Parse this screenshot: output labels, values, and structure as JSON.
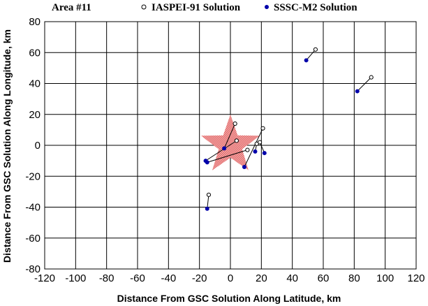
{
  "chart_data": {
    "type": "scatter",
    "area_label": "Area #11",
    "xlabel": "Distance From GSC Solution Along Latitude, km",
    "ylabel": "Distance From GSC Solution Along Longitude, km",
    "xlim": [
      -120,
      120
    ],
    "ylim": [
      -80,
      80
    ],
    "xticks": [
      -120,
      -100,
      -80,
      -60,
      -40,
      -20,
      0,
      20,
      40,
      60,
      80,
      100,
      120
    ],
    "yticks": [
      -80,
      -60,
      -40,
      -20,
      0,
      20,
      40,
      60,
      80
    ],
    "grid": true,
    "legend_position": "top",
    "series": [
      {
        "name": "IASPEI-91 Solution",
        "marker": "open-circle",
        "color": "#000000",
        "points": [
          {
            "x": 55,
            "y": 62
          },
          {
            "x": 91,
            "y": 44
          },
          {
            "x": 3,
            "y": 14
          },
          {
            "x": 21,
            "y": 11
          },
          {
            "x": 4,
            "y": 3
          },
          {
            "x": 19,
            "y": 2
          },
          {
            "x": 17,
            "y": 1
          },
          {
            "x": 11,
            "y": -3
          },
          {
            "x": -14,
            "y": -32
          }
        ]
      },
      {
        "name": "SSSC-M2 Solution",
        "marker": "filled-circle",
        "color": "#0000aa",
        "points": [
          {
            "x": 49,
            "y": 55
          },
          {
            "x": 82,
            "y": 35
          },
          {
            "x": -4,
            "y": -2
          },
          {
            "x": 9,
            "y": -14
          },
          {
            "x": -16,
            "y": -10
          },
          {
            "x": 22,
            "y": -5
          },
          {
            "x": 16,
            "y": -4
          },
          {
            "x": -15,
            "y": -11
          },
          {
            "x": -15,
            "y": -41
          }
        ]
      }
    ],
    "star": {
      "x": 0,
      "y": 0,
      "outer_radius": 20,
      "inner_radius": 8,
      "color": "#ee7777"
    }
  }
}
